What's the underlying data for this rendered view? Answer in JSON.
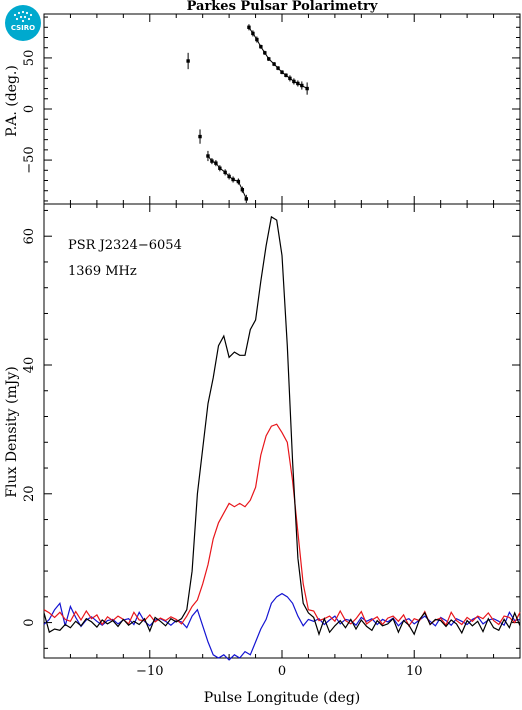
{
  "title": "Parkes Pulsar Polarimetry",
  "logo": {
    "text": "CSIRO",
    "color": "#00a9ce"
  },
  "colors": {
    "total_intensity": "#000000",
    "linear": "#e8161b",
    "circular": "#1414d2"
  },
  "chart_data": [
    {
      "type": "scatter",
      "panel": "top",
      "ylabel": "P.A. (deg.)",
      "xlim": [
        -18,
        18
      ],
      "ylim": [
        -93,
        93
      ],
      "yticks": [
        -50,
        0,
        50
      ],
      "xticks": [
        -10,
        0,
        10
      ],
      "series": [
        {
          "points": [
            {
              "x": -7.1,
              "y": 47,
              "err": 8
            },
            {
              "x": -6.2,
              "y": -27,
              "err": 7
            },
            {
              "x": -5.6,
              "y": -46,
              "err": 5
            },
            {
              "x": -5.3,
              "y": -51,
              "err": 3
            },
            {
              "x": -5.0,
              "y": -53,
              "err": 3
            },
            {
              "x": -4.7,
              "y": -58,
              "err": 3
            },
            {
              "x": -4.3,
              "y": -62,
              "err": 3
            },
            {
              "x": -4.0,
              "y": -66,
              "err": 3
            },
            {
              "x": -3.7,
              "y": -69,
              "err": 3
            },
            {
              "x": -3.3,
              "y": -71,
              "err": 3
            },
            {
              "x": -3.0,
              "y": -79,
              "err": 3
            },
            {
              "x": -2.7,
              "y": -88,
              "err": 4
            },
            {
              "x": -2.5,
              "y": 80,
              "err": 3
            },
            {
              "x": -2.2,
              "y": 74,
              "err": 3
            },
            {
              "x": -1.9,
              "y": 68,
              "err": 3
            },
            {
              "x": -1.6,
              "y": 61,
              "err": 2
            },
            {
              "x": -1.3,
              "y": 55,
              "err": 2
            },
            {
              "x": -1.0,
              "y": 49,
              "err": 2
            },
            {
              "x": -0.6,
              "y": 44,
              "err": 2
            },
            {
              "x": -0.3,
              "y": 40,
              "err": 2
            },
            {
              "x": 0.0,
              "y": 36,
              "err": 2
            },
            {
              "x": 0.3,
              "y": 33,
              "err": 2
            },
            {
              "x": 0.6,
              "y": 30,
              "err": 3
            },
            {
              "x": 0.9,
              "y": 27,
              "err": 3
            },
            {
              "x": 1.2,
              "y": 25,
              "err": 3
            },
            {
              "x": 1.5,
              "y": 23,
              "err": 4
            },
            {
              "x": 1.9,
              "y": 20,
              "err": 6
            }
          ]
        }
      ]
    },
    {
      "type": "line",
      "panel": "bottom",
      "xlabel": "Pulse Longitude (deg)",
      "ylabel": "Flux Density (mJy)",
      "xlim": [
        -18,
        18
      ],
      "ylim": [
        -5.5,
        65
      ],
      "xticks": [
        -10,
        0,
        10
      ],
      "yticks": [
        0,
        20,
        40,
        60
      ],
      "annotations": [
        "PSR J2324−6054",
        "1369 MHz"
      ],
      "x": [
        -18.0,
        -17.6,
        -17.2,
        -16.8,
        -16.4,
        -16.0,
        -15.6,
        -15.2,
        -14.8,
        -14.4,
        -14.0,
        -13.6,
        -13.2,
        -12.8,
        -12.4,
        -12.0,
        -11.6,
        -11.2,
        -10.8,
        -10.4,
        -10.0,
        -9.6,
        -9.2,
        -8.8,
        -8.4,
        -8.0,
        -7.6,
        -7.2,
        -6.8,
        -6.4,
        -6.0,
        -5.6,
        -5.2,
        -4.8,
        -4.4,
        -4.0,
        -3.6,
        -3.2,
        -2.8,
        -2.4,
        -2.0,
        -1.6,
        -1.2,
        -0.8,
        -0.4,
        0.0,
        0.4,
        0.8,
        1.2,
        1.6,
        2.0,
        2.4,
        2.8,
        3.2,
        3.6,
        4.0,
        4.4,
        4.8,
        5.2,
        5.6,
        6.0,
        6.4,
        6.8,
        7.2,
        7.6,
        8.0,
        8.4,
        8.8,
        9.2,
        9.6,
        10.0,
        10.4,
        10.8,
        11.2,
        11.6,
        12.0,
        12.4,
        12.8,
        13.2,
        13.6,
        14.0,
        14.4,
        14.8,
        15.2,
        15.6,
        16.0,
        16.4,
        16.8,
        17.2,
        17.6,
        18.0
      ],
      "series": [
        {
          "color": "#000000",
          "values": [
            1.5,
            -1.5,
            -1.0,
            -1.2,
            -0.3,
            -0.8,
            0.2,
            -0.5,
            0.6,
            0.1,
            -0.7,
            0.4,
            -0.2,
            0.3,
            -0.6,
            0.5,
            -0.4,
            0.2,
            -0.3,
            0.6,
            -1.3,
            0.8,
            0.2,
            -0.5,
            0.6,
            0.1,
            0.6,
            2.0,
            8.0,
            20.0,
            27.0,
            34.0,
            38.0,
            43.0,
            44.5,
            41.2,
            42.0,
            41.5,
            41.5,
            45.5,
            47.0,
            53.0,
            58.5,
            63.0,
            62.5,
            57.0,
            43.0,
            25.0,
            10.0,
            3.0,
            1.5,
            0.8,
            -1.8,
            0.6,
            -1.5,
            -0.5,
            0.3,
            -0.8,
            0.5,
            -1.0,
            0.4,
            -0.6,
            -1.2,
            0.3,
            -0.5,
            -0.2,
            0.6,
            -1.5,
            0.3,
            -0.4,
            -1.8,
            0.5,
            1.5,
            -0.3,
            0.5,
            0.3,
            -0.6,
            0.4,
            -0.2,
            -1.6,
            0.3,
            -0.5,
            0.2,
            -1.4,
            0.6,
            -0.8,
            -1.2,
            0.5,
            -0.8,
            1.5,
            -0.5
          ]
        },
        {
          "color": "#e8161b",
          "values": [
            2.0,
            1.5,
            0.8,
            1.6,
            0.5,
            0.2,
            1.7,
            0.4,
            1.8,
            0.6,
            1.2,
            -0.3,
            0.9,
            0.3,
            1.0,
            0.5,
            -0.2,
            1.6,
            0.4,
            0.3,
            1.2,
            0.1,
            0.7,
            0.3,
            0.9,
            0.5,
            -0.2,
            1.0,
            2.5,
            3.5,
            6.0,
            9.0,
            13.0,
            15.5,
            17.0,
            18.5,
            18.0,
            18.5,
            18.0,
            19.0,
            21.0,
            26.0,
            29.0,
            30.5,
            30.8,
            29.5,
            28.0,
            22.0,
            14.0,
            6.0,
            2.0,
            1.8,
            0.3,
            0.6,
            1.0,
            0.2,
            1.8,
            0.3,
            -0.2,
            0.6,
            1.7,
            -0.2,
            0.4,
            0.9,
            -0.3,
            0.7,
            1.0,
            0.2,
            1.2,
            -0.5,
            0.6,
            0.3,
            1.7,
            -0.3,
            0.4,
            0.7,
            -0.4,
            1.6,
            0.3,
            -0.3,
            0.8,
            0.2,
            1.0,
            0.6,
            1.5,
            0.3,
            -0.3,
            1.0,
            0.8,
            0.0,
            1.6
          ]
        },
        {
          "color": "#1414d2",
          "values": [
            -0.3,
            0.5,
            2.0,
            3.0,
            -0.5,
            2.5,
            0.8,
            -0.6,
            0.4,
            0.9,
            0.2,
            -0.4,
            0.3,
            0.5,
            -0.2,
            0.4,
            0.6,
            -0.3,
            1.6,
            0.2,
            -0.5,
            0.4,
            0.6,
            0.2,
            -0.4,
            0.3,
            0.1,
            -0.8,
            1.0,
            2.0,
            -0.5,
            -3.0,
            -5.0,
            -5.5,
            -5.0,
            -5.8,
            -5.0,
            -5.5,
            -4.5,
            -5.0,
            -3.0,
            -1.0,
            0.5,
            3.0,
            4.0,
            4.5,
            4.0,
            3.0,
            1.0,
            -0.5,
            0.5,
            0.2,
            0.6,
            -0.3,
            0.4,
            1.0,
            -0.2,
            0.5,
            0.3,
            -0.4,
            0.8,
            0.2,
            0.6,
            -0.3,
            0.5,
            0.1,
            0.7,
            -0.5,
            0.3,
            0.6,
            -0.2,
            0.4,
            1.0,
            0.2,
            -0.5,
            0.8,
            0.3,
            -0.4,
            0.6,
            0.2,
            -0.3,
            0.5,
            0.9,
            -0.2,
            0.4,
            0.6,
            0.2,
            -0.4,
            1.6,
            0.3,
            0.5
          ]
        }
      ]
    }
  ]
}
